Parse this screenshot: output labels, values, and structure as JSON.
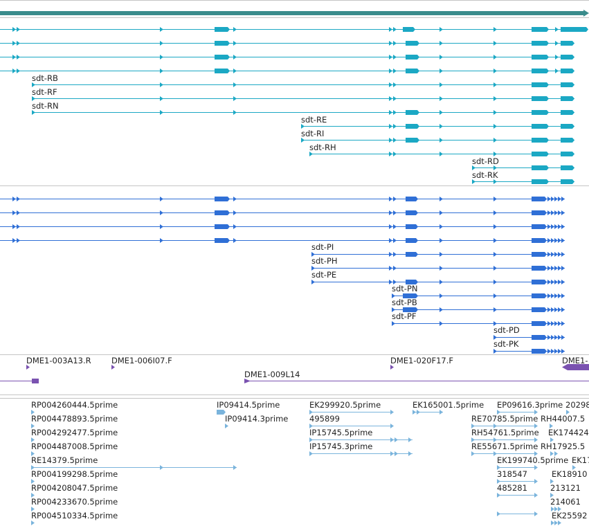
{
  "colors": {
    "gene_bar": "#3a8c8c",
    "transcript_teal": "#1ba8c4",
    "transcript_blue": "#2f6fd6",
    "clone": "#7a52b0",
    "est": "#7ab4dc",
    "divider": "#c4c4c4"
  },
  "tracks": {
    "transcripts_a": {
      "labels": [
        "sdt-RB",
        "sdt-RF",
        "sdt-RN",
        "sdt-RE",
        "sdt-RI",
        "sdt-RH",
        "sdt-RD",
        "sdt-RK"
      ]
    },
    "transcripts_b": {
      "labels": [
        "sdt-PI",
        "sdt-PH",
        "sdt-PE",
        "sdt-PN",
        "sdt-PB",
        "sdt-PF",
        "sdt-PD",
        "sdt-PK"
      ]
    },
    "clones": {
      "labels": [
        "DME1-003A13.R",
        "DME1-006I07.F",
        "DME1-009L14",
        "DME1-020F17.F",
        "DME1-"
      ]
    },
    "ests": {
      "labels": [
        "RP004260444.5prime",
        "RP004478893.5prime",
        "RP004292477.5prime",
        "RP004487008.5prime",
        "RE14379.5prime",
        "RP004199298.5prime",
        "RP004208047.5prime",
        "RP004233670.5prime",
        "RP004510334.5prime",
        "IP09414.5prime",
        "IP09414.3prime",
        "EK299920.5prime",
        "495899",
        "IP15745.5prime",
        "IP15745.3prime",
        "EK165001.5prime",
        "EP09616.3prime",
        "20298",
        "RE70785.5prime",
        "RH44007.5",
        "RH54761.5prime",
        "EK174424",
        "RE55671.5prime",
        "RH17925.5",
        "EK199740.5prime",
        "EK17",
        "318547",
        "EK18910",
        "485281",
        "213121",
        "214061",
        "EK25592"
      ]
    }
  }
}
